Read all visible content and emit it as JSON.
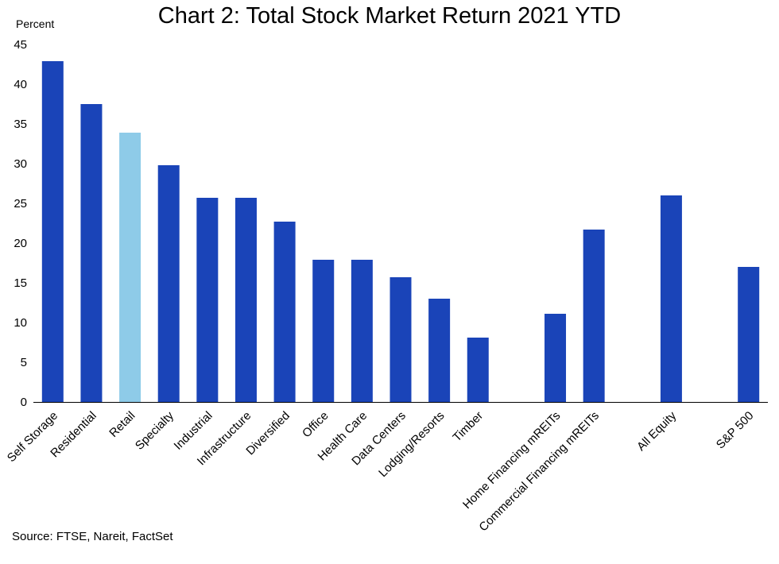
{
  "chart_data": {
    "type": "bar",
    "title": "Chart 2: Total Stock Market Return 2021 YTD",
    "ylabel": "Percent",
    "source": "Source: FTSE, Nareit, FactSet",
    "ylim": [
      0,
      45
    ],
    "yticks": [
      0,
      5,
      10,
      15,
      20,
      25,
      30,
      35,
      40,
      45
    ],
    "grid": false,
    "categories": [
      "Self Storage",
      "Residential",
      "Retail",
      "Specialty",
      "Industrial",
      "Infrastructure",
      "Diversified",
      "Office",
      "Health Care",
      "Data Centers",
      "Lodging/Resorts",
      "Timber",
      "",
      "Home Financing mREITs",
      "Commercial Financing mREITs",
      "",
      "All Equity",
      "",
      "S&P 500"
    ],
    "values": [
      42.9,
      37.5,
      33.9,
      29.8,
      25.7,
      25.7,
      22.7,
      17.9,
      17.9,
      15.7,
      13.0,
      8.1,
      null,
      11.1,
      21.7,
      null,
      26.0,
      null,
      17.0
    ],
    "colors": {
      "default": "#1a44b8",
      "highlight": "#8ecbe8",
      "highlight_categories": [
        "Retail"
      ]
    }
  }
}
